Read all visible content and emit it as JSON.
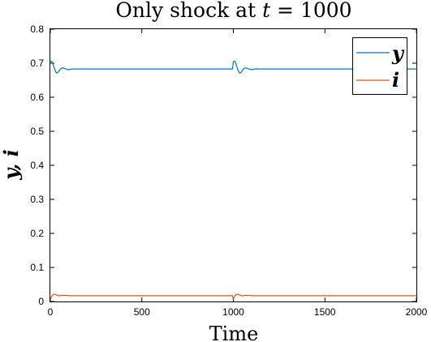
{
  "chart_data": {
    "type": "line",
    "title": {
      "prefix": "Only shock at ",
      "variable": "t",
      "suffix": " = 1000"
    },
    "xlabel": "Time",
    "ylabel": "y, i",
    "xlim": [
      0,
      2000
    ],
    "ylim": [
      0,
      0.8
    ],
    "xticks": [
      "0",
      "500",
      "1000",
      "1500",
      "2000"
    ],
    "yticks": [
      "0",
      "0.1",
      "0.2",
      "0.3",
      "0.4",
      "0.5",
      "0.6",
      "0.7",
      "0.8"
    ],
    "grid": false,
    "legend_position": "top-right",
    "series": [
      {
        "name": "y",
        "color": "#0072BD",
        "x": [
          0,
          5,
          10,
          15,
          20,
          25,
          30,
          35,
          40,
          45,
          50,
          55,
          60,
          65,
          70,
          80,
          90,
          100,
          110,
          120,
          130,
          140,
          150,
          200,
          400,
          600,
          800,
          995,
          1000,
          1005,
          1010,
          1015,
          1020,
          1025,
          1030,
          1035,
          1040,
          1045,
          1050,
          1055,
          1060,
          1065,
          1070,
          1080,
          1090,
          1100,
          1110,
          1120,
          1130,
          1140,
          1150,
          1200,
          1400,
          1600,
          1800,
          2000
        ],
        "y": [
          0.705,
          0.706,
          0.704,
          0.697,
          0.688,
          0.68,
          0.674,
          0.671,
          0.672,
          0.675,
          0.679,
          0.683,
          0.685,
          0.686,
          0.686,
          0.684,
          0.682,
          0.681,
          0.682,
          0.683,
          0.683,
          0.683,
          0.683,
          0.683,
          0.683,
          0.683,
          0.683,
          0.683,
          0.705,
          0.706,
          0.704,
          0.697,
          0.688,
          0.68,
          0.674,
          0.671,
          0.672,
          0.675,
          0.679,
          0.683,
          0.685,
          0.686,
          0.686,
          0.684,
          0.682,
          0.681,
          0.682,
          0.683,
          0.683,
          0.683,
          0.683,
          0.683,
          0.683,
          0.683,
          0.683,
          0.683
        ]
      },
      {
        "name": "i",
        "color": "#D95319",
        "x": [
          0,
          5,
          10,
          15,
          20,
          25,
          30,
          35,
          40,
          45,
          50,
          55,
          60,
          65,
          70,
          80,
          90,
          100,
          110,
          120,
          130,
          140,
          150,
          200,
          400,
          600,
          800,
          995,
          1000,
          1005,
          1010,
          1015,
          1020,
          1025,
          1030,
          1035,
          1040,
          1045,
          1050,
          1055,
          1060,
          1065,
          1070,
          1080,
          1090,
          1100,
          1110,
          1120,
          1130,
          1140,
          1150,
          1200,
          1400,
          1600,
          1800,
          2000
        ],
        "y": [
          0.006,
          0.012,
          0.017,
          0.02,
          0.021,
          0.021,
          0.02,
          0.019,
          0.018,
          0.017,
          0.017,
          0.017,
          0.018,
          0.018,
          0.018,
          0.018,
          0.018,
          0.017,
          0.017,
          0.017,
          0.017,
          0.017,
          0.017,
          0.017,
          0.017,
          0.017,
          0.017,
          0.017,
          0.006,
          0.012,
          0.017,
          0.02,
          0.021,
          0.021,
          0.02,
          0.019,
          0.018,
          0.017,
          0.017,
          0.017,
          0.018,
          0.018,
          0.018,
          0.018,
          0.018,
          0.017,
          0.017,
          0.017,
          0.017,
          0.017,
          0.017,
          0.017,
          0.017,
          0.017,
          0.017,
          0.017
        ]
      }
    ]
  }
}
